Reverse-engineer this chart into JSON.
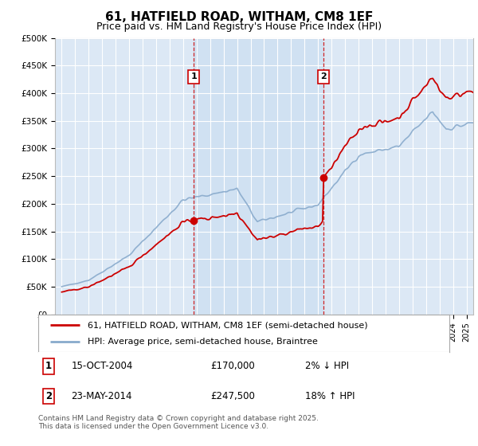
{
  "title": "61, HATFIELD ROAD, WITHAM, CM8 1EF",
  "subtitle": "Price paid vs. HM Land Registry's House Price Index (HPI)",
  "footer": "Contains HM Land Registry data © Crown copyright and database right 2025.\nThis data is licensed under the Open Government Licence v3.0.",
  "legend_line1": "61, HATFIELD ROAD, WITHAM, CM8 1EF (semi-detached house)",
  "legend_line2": "HPI: Average price, semi-detached house, Braintree",
  "annotation1_label": "1",
  "annotation1_date": "15-OCT-2004",
  "annotation1_price": "£170,000",
  "annotation1_hpi": "2% ↓ HPI",
  "annotation2_label": "2",
  "annotation2_date": "23-MAY-2014",
  "annotation2_price": "£247,500",
  "annotation2_hpi": "18% ↑ HPI",
  "sale1_x": 2004.79,
  "sale1_y": 170000,
  "sale2_x": 2014.39,
  "sale2_y": 247500,
  "vline1_x": 2004.79,
  "vline2_x": 2014.39,
  "ylim": [
    0,
    500000
  ],
  "xlim": [
    1994.5,
    2025.5
  ],
  "line_color_red": "#cc0000",
  "line_color_blue": "#88aacc",
  "vline_color": "#cc0000",
  "shade_color": "#dce8f5",
  "bg_color": "#dce8f5",
  "plot_bg": "#ffffff",
  "grid_color": "#cccccc",
  "title_fontsize": 11,
  "subtitle_fontsize": 9
}
